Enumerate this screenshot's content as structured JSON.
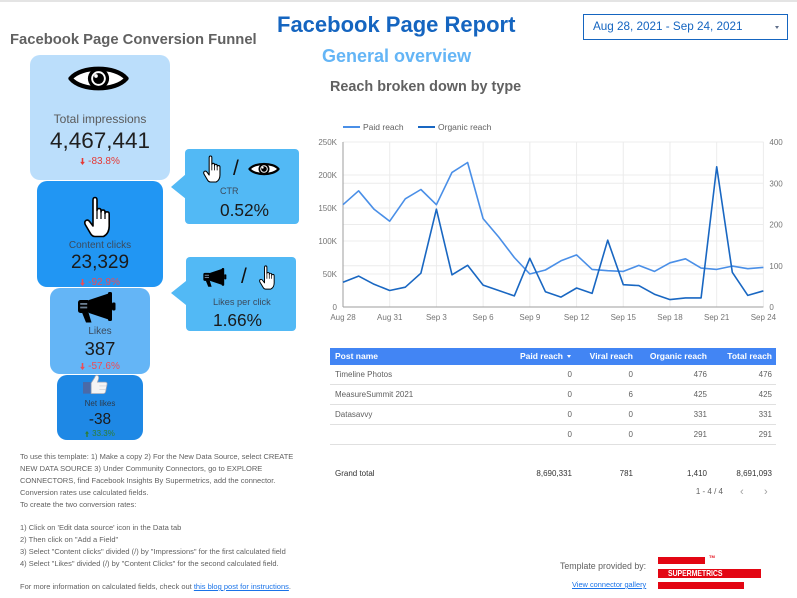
{
  "header": {
    "title": "Facebook Page Report",
    "subtitle": "General overview",
    "chart_title": "Reach broken down by type"
  },
  "date_range": {
    "value": "Aug 28, 2021 - Sep 24, 2021",
    "icon": "caret-down-icon"
  },
  "funnel": {
    "title": "Facebook Page Conversion Funnel",
    "stages": [
      {
        "label": "Total impressions",
        "value": "4,467,441",
        "change": "-83.8%",
        "change_direction": "down",
        "icon": "eye-icon",
        "color": "#BBDEFB"
      },
      {
        "label": "Content clicks",
        "value": "23,329",
        "change": "-92.9%",
        "change_direction": "down",
        "icon": "pointer-hand-icon",
        "color": "#2196F3"
      },
      {
        "label": "Likes",
        "value": "387",
        "change": "-57.6%",
        "change_direction": "down",
        "icon": "megaphone-icon",
        "color": "#64B5F6"
      },
      {
        "label": "Net likes",
        "value": "-38",
        "change": "33.3%",
        "change_direction": "up",
        "icon": "thumbs-up-icon",
        "color": "#1E88E5"
      }
    ],
    "ratios": [
      {
        "label": "CTR",
        "value": "0.52%",
        "separator": "/",
        "icons": [
          "pointer-hand-icon",
          "eye-icon"
        ],
        "color": "#52B9F5"
      },
      {
        "label": "Likes per click",
        "value": "1.66%",
        "separator": "/",
        "icons": [
          "megaphone-icon",
          "pointer-hand-icon"
        ],
        "color": "#52B9F5"
      }
    ]
  },
  "table": {
    "columns": [
      "Post name",
      "Paid reach",
      "Viral reach",
      "Organic reach",
      "Total reach"
    ],
    "sort": {
      "column": "Paid reach",
      "direction": "desc",
      "icon": "sort-desc-icon"
    },
    "rows": [
      [
        "Timeline Photos",
        "0",
        "0",
        "476",
        "476"
      ],
      [
        "MeasureSummit 2021",
        "0",
        "6",
        "425",
        "425"
      ],
      [
        "Datasavvy",
        "0",
        "0",
        "331",
        "331"
      ],
      [
        "",
        "0",
        "0",
        "291",
        "291"
      ]
    ],
    "grand_total": {
      "label": "Grand total",
      "values": [
        "8,690,331",
        "781",
        "1,410",
        "8,691,093"
      ]
    },
    "pagination": {
      "range": "1 - 4 / 4",
      "prev": "‹",
      "next": "›"
    },
    "header_color": "#4285F4"
  },
  "instructions": {
    "paragraph_lines": [
      "To use this template: 1) Make a copy 2) For the New Data Source, select CREATE",
      "NEW DATA SOURCE 3) Under Community Connectors, go to EXPLORE",
      "CONNECTORS, find Facebook Insights By Supermetrics, add the connector.",
      "Conversion rates use calculated fields.",
      "To create the two conversion rates:"
    ],
    "steps": [
      "1) Click on 'Edit data source' icon in the Data tab",
      "2) Then click on \"Add a Field\"",
      "3) Select \"Content clicks\" divided (/) by \"Impressions\" for the first calculated field",
      "4) Select \"Likes\" divided (/) by \"Content Clicks\" for the second calculated field."
    ],
    "more_info_prefix": "For more information on calculated fields, check out ",
    "more_info_link": "this blog post for instructions",
    "more_info_suffix": "."
  },
  "footer": {
    "template_provided_by": "Template provided by:",
    "gallery_link": "View connector gallery",
    "logo_text": "SUPERMETRICS",
    "logo_tm": "TM",
    "logo_color": "#E30613"
  },
  "colors": {
    "title_blue": "#1565C0",
    "subtitle_blue": "#64B5F6",
    "negative": "#E53935",
    "positive": "#2E7D32"
  },
  "chart_data": {
    "type": "line",
    "title": "Reach broken down by type",
    "xlabel": "",
    "ylabel": "",
    "x": [
      "Aug 28",
      "Aug 29",
      "Aug 30",
      "Aug 31",
      "Sep 1",
      "Sep 2",
      "Sep 3",
      "Sep 4",
      "Sep 5",
      "Sep 6",
      "Sep 7",
      "Sep 8",
      "Sep 9",
      "Sep 10",
      "Sep 11",
      "Sep 12",
      "Sep 13",
      "Sep 14",
      "Sep 15",
      "Sep 16",
      "Sep 17",
      "Sep 18",
      "Sep 19",
      "Sep 20",
      "Sep 21",
      "Sep 22",
      "Sep 23",
      "Sep 24"
    ],
    "x_tick_labels": [
      "Aug 28",
      "Aug 31",
      "Sep 3",
      "Sep 6",
      "Sep 9",
      "Sep 12",
      "Sep 15",
      "Sep 18",
      "Sep 21",
      "Sep 24"
    ],
    "series": [
      {
        "name": "Paid reach",
        "axis": "left",
        "color": "#4A8FE7",
        "values": [
          155000,
          176000,
          148000,
          130000,
          164000,
          178000,
          155000,
          204000,
          219000,
          134000,
          106000,
          75000,
          50000,
          56000,
          70000,
          79000,
          57000,
          55000,
          54000,
          63000,
          54000,
          67000,
          73000,
          59000,
          57000,
          62000,
          58000,
          60000
        ]
      },
      {
        "name": "Organic reach",
        "axis": "right",
        "color": "#1967C2",
        "values": [
          60,
          75,
          55,
          40,
          48,
          82,
          237,
          78,
          101,
          53,
          40,
          27,
          118,
          37,
          24,
          46,
          33,
          162,
          54,
          52,
          31,
          18,
          22,
          22,
          340,
          84,
          28,
          39
        ]
      }
    ],
    "y_left": {
      "min": 0,
      "max": 250000,
      "ticks": [
        0,
        50000,
        100000,
        150000,
        200000,
        250000
      ],
      "tick_labels": [
        "0",
        "50K",
        "100K",
        "150K",
        "200K",
        "250K"
      ]
    },
    "y_right": {
      "min": 0,
      "max": 400,
      "ticks": [
        0,
        100,
        200,
        300,
        400
      ],
      "tick_labels": [
        "0",
        "100",
        "200",
        "300",
        "400"
      ]
    },
    "legend_position": "top-left",
    "grid": true
  }
}
